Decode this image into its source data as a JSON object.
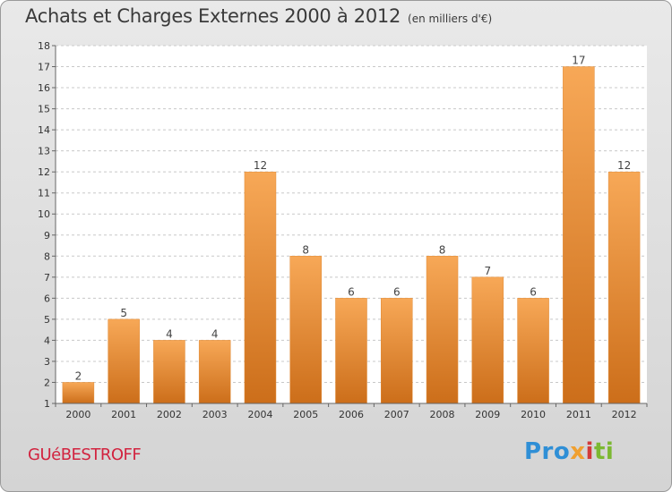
{
  "title": "Achats et Charges Externes 2000 à 2012",
  "subtitle": "(en milliers d'€)",
  "commune": "GUéBESTROFF",
  "logo": {
    "part1": "Pro",
    "part2": "x",
    "part3": "i",
    "part4": "ti"
  },
  "colors": {
    "bar_top": "#f7a857",
    "bar_bottom": "#cc6e1a",
    "commune": "#d2233f"
  },
  "chart_data": {
    "type": "bar",
    "categories": [
      "2000",
      "2001",
      "2002",
      "2003",
      "2004",
      "2005",
      "2006",
      "2007",
      "2008",
      "2009",
      "2010",
      "2011",
      "2012"
    ],
    "values": [
      2,
      5,
      4,
      4,
      12,
      8,
      6,
      6,
      8,
      7,
      6,
      17,
      12
    ],
    "yticks": [
      "1",
      "2",
      "3",
      "4",
      "5",
      "6",
      "7",
      "8",
      "9",
      "10",
      "11",
      "12",
      "13",
      "14",
      "15",
      "16",
      "17",
      "18"
    ],
    "title": "Achats et Charges Externes 2000 à 2012",
    "xlabel": "",
    "ylabel": "",
    "ylim": [
      1,
      18
    ],
    "grid": "horizontal-dashed",
    "legend": "none"
  }
}
